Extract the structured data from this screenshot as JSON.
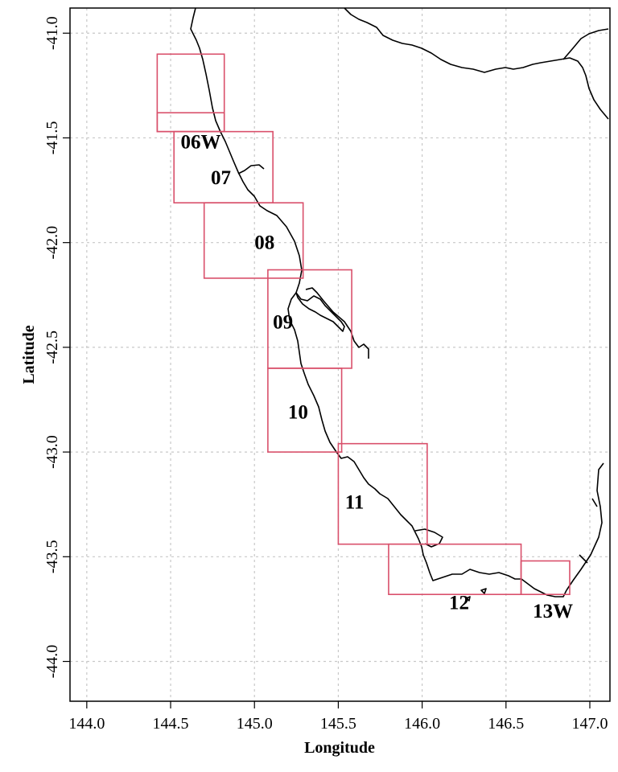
{
  "map": {
    "xlabel": "Longitude",
    "ylabel": "Latitude",
    "xlim": [
      143.9,
      147.12
    ],
    "ylim": [
      -44.19,
      -40.88
    ],
    "x_ticks": [
      144.0,
      144.5,
      145.0,
      145.5,
      146.0,
      146.5,
      147.0
    ],
    "x_tick_labels": [
      "144.0",
      "144.5",
      "145.0",
      "145.5",
      "146.0",
      "146.5",
      "147.0"
    ],
    "y_ticks": [
      -41.0,
      -41.5,
      -42.0,
      -42.5,
      -43.0,
      -43.5,
      -44.0
    ],
    "y_tick_labels": [
      "-41.0",
      "-41.5",
      "-42.0",
      "-42.5",
      "-43.0",
      "-43.5",
      "-44.0"
    ],
    "grid": true,
    "zone_color": "#d9506b",
    "zones": [
      {
        "label": "06W",
        "lon": [
          144.42,
          144.82
        ],
        "lat": [
          -41.47,
          -41.1
        ],
        "label_lon": 144.56,
        "label_lat": -41.55
      },
      {
        "label": "06W",
        "lon": [
          144.42,
          144.82
        ],
        "lat": [
          -41.47,
          -41.38
        ],
        "label_lon": null,
        "label_lat": null
      },
      {
        "label": "07",
        "lon": [
          144.52,
          145.11
        ],
        "lat": [
          -41.81,
          -41.47
        ],
        "label_lon": 144.74,
        "label_lat": -41.72
      },
      {
        "label": "08",
        "lon": [
          144.7,
          145.29
        ],
        "lat": [
          -42.17,
          -41.81
        ],
        "label_lon": 145.0,
        "label_lat": -42.03
      },
      {
        "label": "09",
        "lon": [
          145.08,
          145.58
        ],
        "lat": [
          -42.6,
          -42.13
        ],
        "label_lon": 145.11,
        "label_lat": -42.41
      },
      {
        "label": "10",
        "lon": [
          145.08,
          145.52
        ],
        "lat": [
          -43.0,
          -42.6
        ],
        "label_lon": 145.2,
        "label_lat": -42.84
      },
      {
        "label": "11",
        "lon": [
          145.5,
          146.03
        ],
        "lat": [
          -43.44,
          -42.96
        ],
        "label_lon": 145.54,
        "label_lat": -43.27
      },
      {
        "label": "12",
        "lon": [
          145.8,
          146.59
        ],
        "lat": [
          -43.68,
          -43.44
        ],
        "label_lon": 146.16,
        "label_lat": -43.75
      },
      {
        "label": "13W",
        "lon": [
          146.59,
          146.88
        ],
        "lat": [
          -43.68,
          -43.52
        ],
        "label_lon": 146.66,
        "label_lat": -43.79
      }
    ]
  }
}
